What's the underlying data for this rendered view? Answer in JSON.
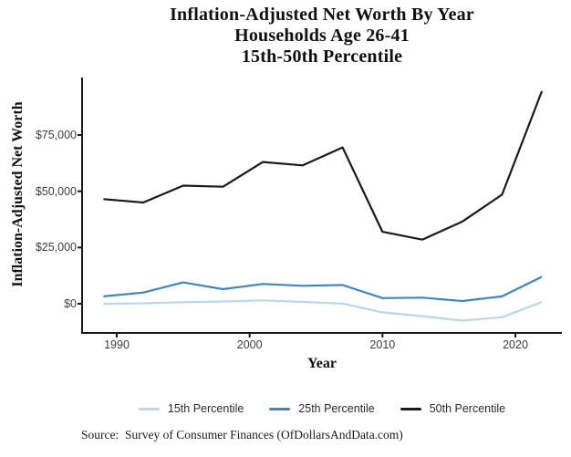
{
  "title": {
    "line1": "Inflation-Adjusted Net Worth By Year",
    "line2": "Households Age 26-41",
    "line3": "15th-50th Percentile"
  },
  "y_axis": {
    "label": "Inflation-Adjusted Net Worth",
    "ticks": [
      {
        "label": "$0",
        "value": 0
      },
      {
        "label": "$25,000",
        "value": 25000
      },
      {
        "label": "$50,000",
        "value": 50000
      },
      {
        "label": "$75,000",
        "value": 75000
      }
    ]
  },
  "x_axis": {
    "label": "Year",
    "ticks": [
      {
        "label": "1990",
        "value": 1990
      },
      {
        "label": "2000",
        "value": 2000
      },
      {
        "label": "2010",
        "value": 2010
      },
      {
        "label": "2020",
        "value": 2020
      }
    ]
  },
  "legend": {
    "items": [
      {
        "label": "15th Percentile",
        "color": "#b9d9ea"
      },
      {
        "label": "25th Percentile",
        "color": "#3f87bd"
      },
      {
        "label": "50th Percentile",
        "color": "#1a1a1a"
      }
    ],
    "position": "bottom"
  },
  "source": "Source:  Survey of Consumer Finances (OfDollarsAndData.com)",
  "colors": {
    "axis": "#1a1a1a",
    "tick_text": "#3d3d3d",
    "background": "#ffffff"
  },
  "chart_data": {
    "type": "line",
    "title": "Inflation-Adjusted Net Worth By Year",
    "subtitle": "Households Age 26-41, 15th-50th Percentile",
    "xlabel": "Year",
    "ylabel": "Inflation-Adjusted Net Worth",
    "x": [
      1989,
      1992,
      1995,
      1998,
      2001,
      2004,
      2007,
      2010,
      2013,
      2016,
      2019,
      2022
    ],
    "series": [
      {
        "name": "15th Percentile",
        "color": "#b9d9ea",
        "values": [
          0,
          200,
          700,
          1000,
          1500,
          800,
          100,
          -3800,
          -5500,
          -7500,
          -6000,
          800
        ]
      },
      {
        "name": "25th Percentile",
        "color": "#3f87bd",
        "values": [
          3300,
          5000,
          9500,
          6500,
          8800,
          8000,
          8300,
          2500,
          2700,
          1200,
          3300,
          12000
        ]
      },
      {
        "name": "50th Percentile",
        "color": "#1a1a1a",
        "values": [
          46500,
          45000,
          52500,
          52000,
          63000,
          61500,
          69500,
          32000,
          28500,
          36500,
          48500,
          94500
        ]
      }
    ],
    "xlim": [
      1987.5,
      2023.5
    ],
    "ylim": [
      -13000,
      100500
    ],
    "grid": false,
    "legend_position": "bottom"
  }
}
